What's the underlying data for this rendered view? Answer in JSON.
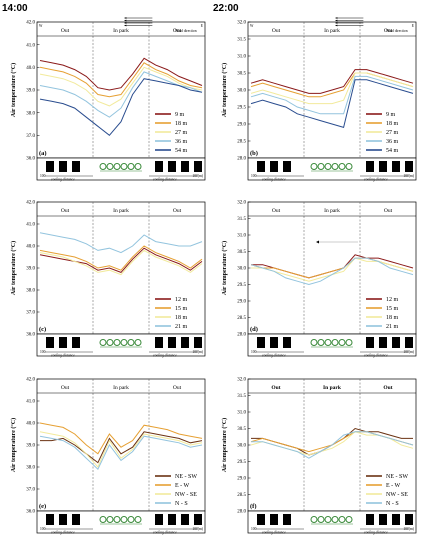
{
  "times": [
    "14:00",
    "22:00"
  ],
  "zones": [
    "Out",
    "In park",
    "Out"
  ],
  "wind_label": "Wind direction",
  "compass": [
    "W",
    "E"
  ],
  "ylabel": "Air temperature (°C)",
  "cooling_label": "cooling distance",
  "dist_start": "100",
  "dist_end": "100(m)",
  "colors": {
    "h9": "#8b1a1a",
    "h18": "#e6a033",
    "h27": "#f2ea9c",
    "h36": "#93c4de",
    "h54": "#2a4d8f",
    "h12": "#8b1a1a",
    "h15": "#e6a033",
    "h21": "#93c4de",
    "NESW": "#6b3212",
    "EW": "#e6a033",
    "NWSE": "#f2ea9c",
    "NS": "#93c4de"
  },
  "chart_data": [
    {
      "id": "a",
      "type": "line",
      "panel_label": "(a)",
      "time": "14:00",
      "ylim": [
        36,
        42
      ],
      "yticks": [
        "36.0",
        "37.0",
        "38.0",
        "39.0",
        "40.0",
        "41.0",
        "42.0"
      ],
      "show_wind": true,
      "show_compass": true,
      "series": [
        {
          "name": "9 m",
          "color_key": "h9",
          "values": [
            40.3,
            40.2,
            40.1,
            39.9,
            39.6,
            39.1,
            39.0,
            39.1,
            39.7,
            40.4,
            40.1,
            39.9,
            39.6,
            39.4,
            39.2
          ]
        },
        {
          "name": "18 m",
          "color_key": "h18",
          "values": [
            40.0,
            39.9,
            39.8,
            39.6,
            39.3,
            38.8,
            38.7,
            38.8,
            39.5,
            40.2,
            39.9,
            39.7,
            39.4,
            39.2,
            39.1
          ]
        },
        {
          "name": "27 m",
          "color_key": "h27",
          "values": [
            39.7,
            39.6,
            39.5,
            39.3,
            39.0,
            38.5,
            38.3,
            38.6,
            39.3,
            40.0,
            39.8,
            39.6,
            39.3,
            39.1,
            39.0
          ]
        },
        {
          "name": "36 m",
          "color_key": "h36",
          "values": [
            39.2,
            39.1,
            39.0,
            38.8,
            38.5,
            38.1,
            37.8,
            38.2,
            39.1,
            39.8,
            39.6,
            39.4,
            39.2,
            39.1,
            38.9
          ]
        },
        {
          "name": "54 m",
          "color_key": "h54",
          "values": [
            38.6,
            38.5,
            38.4,
            38.2,
            37.8,
            37.4,
            37.0,
            37.6,
            38.8,
            39.5,
            39.4,
            39.3,
            39.2,
            39.0,
            38.9
          ]
        }
      ]
    },
    {
      "id": "b",
      "type": "line",
      "panel_label": "(b)",
      "time": "22:00",
      "ylim": [
        28,
        32
      ],
      "yticks": [
        "28.0",
        "28.5",
        "29.0",
        "29.5",
        "30.0",
        "30.5",
        "31.0",
        "31.5",
        "32.0"
      ],
      "show_wind": true,
      "show_compass": true,
      "series": [
        {
          "name": "9 m",
          "color_key": "h9",
          "values": [
            30.2,
            30.3,
            30.2,
            30.1,
            30.0,
            29.9,
            29.9,
            30.0,
            30.1,
            30.6,
            30.6,
            30.5,
            30.4,
            30.3,
            30.2
          ]
        },
        {
          "name": "18 m",
          "color_key": "h18",
          "values": [
            30.1,
            30.2,
            30.1,
            30.0,
            29.9,
            29.8,
            29.8,
            29.9,
            30.0,
            30.5,
            30.5,
            30.4,
            30.3,
            30.2,
            30.1
          ]
        },
        {
          "name": "27 m",
          "color_key": "h27",
          "values": [
            29.9,
            30.0,
            29.9,
            29.8,
            29.7,
            29.6,
            29.6,
            29.6,
            29.7,
            30.5,
            30.5,
            30.4,
            30.3,
            30.2,
            30.1
          ]
        },
        {
          "name": "36 m",
          "color_key": "h36",
          "values": [
            29.8,
            29.9,
            29.8,
            29.7,
            29.5,
            29.4,
            29.3,
            29.3,
            29.3,
            30.4,
            30.4,
            30.3,
            30.2,
            30.1,
            30.0
          ]
        },
        {
          "name": "54 m",
          "color_key": "h54",
          "values": [
            29.6,
            29.7,
            29.6,
            29.5,
            29.3,
            29.2,
            29.1,
            29.0,
            28.9,
            30.3,
            30.3,
            30.2,
            30.1,
            30.0,
            29.9
          ]
        }
      ]
    },
    {
      "id": "c",
      "type": "line",
      "panel_label": "(c)",
      "time": "14:00",
      "ylim": [
        36,
        42
      ],
      "yticks": [
        "36.0",
        "37.0",
        "38.0",
        "39.0",
        "40.0",
        "41.0",
        "42.0"
      ],
      "show_wind": false,
      "show_compass": false,
      "series": [
        {
          "name": "12 m",
          "color_key": "h12",
          "values": [
            39.6,
            39.5,
            39.4,
            39.3,
            39.2,
            38.9,
            39.0,
            38.8,
            39.4,
            39.9,
            39.6,
            39.4,
            39.2,
            38.9,
            39.3
          ]
        },
        {
          "name": "15 m",
          "color_key": "h15",
          "values": [
            39.8,
            39.7,
            39.6,
            39.5,
            39.3,
            39.0,
            39.1,
            38.9,
            39.5,
            40.0,
            39.7,
            39.5,
            39.3,
            39.0,
            39.4
          ]
        },
        {
          "name": "18 m",
          "color_key": "h27",
          "values": [
            39.7,
            39.6,
            39.5,
            39.3,
            39.1,
            38.8,
            38.9,
            38.7,
            39.3,
            39.8,
            39.5,
            39.3,
            39.1,
            38.8,
            39.2
          ]
        },
        {
          "name": "21 m",
          "color_key": "h21",
          "values": [
            40.6,
            40.5,
            40.4,
            40.3,
            40.1,
            39.8,
            39.9,
            39.7,
            40.0,
            40.5,
            40.2,
            40.1,
            40.0,
            40.0,
            40.2
          ]
        }
      ]
    },
    {
      "id": "d",
      "type": "line",
      "panel_label": "(d)",
      "time": "22:00",
      "ylim": [
        28,
        32
      ],
      "yticks": [
        "28.0",
        "28.5",
        "29.0",
        "29.5",
        "30.0",
        "30.5",
        "31.0",
        "31.5",
        "32.0"
      ],
      "show_wind": false,
      "show_compass": false,
      "show_arrow": true,
      "series": [
        {
          "name": "12 m",
          "color_key": "h12",
          "values": [
            30.1,
            30.1,
            30.0,
            29.9,
            29.8,
            29.7,
            29.8,
            29.9,
            30.0,
            30.4,
            30.3,
            30.3,
            30.2,
            30.1,
            30.0
          ]
        },
        {
          "name": "15 m",
          "color_key": "h15",
          "values": [
            30.1,
            30.0,
            30.0,
            29.9,
            29.8,
            29.7,
            29.8,
            29.9,
            30.0,
            30.3,
            30.3,
            30.2,
            30.1,
            30.0,
            29.9
          ]
        },
        {
          "name": "18 m",
          "color_key": "h27",
          "values": [
            30.0,
            30.0,
            29.9,
            29.8,
            29.7,
            29.6,
            29.7,
            29.8,
            29.9,
            30.3,
            30.2,
            30.2,
            30.1,
            30.0,
            29.9
          ]
        },
        {
          "name": "21 m",
          "color_key": "h21",
          "values": [
            30.1,
            30.0,
            29.9,
            29.7,
            29.6,
            29.5,
            29.6,
            29.8,
            30.0,
            30.3,
            30.3,
            30.2,
            30.0,
            29.9,
            29.8
          ]
        }
      ]
    },
    {
      "id": "e",
      "type": "line",
      "panel_label": "(e)",
      "time": "14:00",
      "ylim": [
        36,
        42
      ],
      "yticks": [
        "36.0",
        "37.0",
        "38.0",
        "39.0",
        "40.0",
        "41.0",
        "42.0"
      ],
      "show_wind": false,
      "show_compass": false,
      "series": [
        {
          "name": "NE - SW",
          "color_key": "NESW",
          "values": [
            39.2,
            39.2,
            39.3,
            39.0,
            38.6,
            38.2,
            39.3,
            38.6,
            38.9,
            39.6,
            39.5,
            39.4,
            39.3,
            39.1,
            39.2
          ]
        },
        {
          "name": "E - W",
          "color_key": "EW",
          "values": [
            40.0,
            39.9,
            39.8,
            39.5,
            39.0,
            38.6,
            39.5,
            38.9,
            39.2,
            39.9,
            39.8,
            39.7,
            39.5,
            39.4,
            39.3
          ]
        },
        {
          "name": "NW - SE",
          "color_key": "NWSE",
          "values": [
            39.6,
            39.5,
            39.4,
            39.1,
            38.6,
            38.0,
            39.2,
            38.4,
            38.8,
            39.5,
            39.4,
            39.3,
            39.2,
            39.0,
            39.1
          ]
        },
        {
          "name": "N - S",
          "color_key": "NS",
          "values": [
            39.4,
            39.3,
            39.2,
            38.9,
            38.4,
            37.9,
            39.0,
            38.3,
            38.7,
            39.4,
            39.3,
            39.2,
            39.1,
            38.9,
            39.0
          ]
        }
      ]
    },
    {
      "id": "f",
      "type": "line",
      "panel_label": "(f)",
      "time": "22:00",
      "ylim": [
        28,
        32
      ],
      "yticks": [
        "28.0",
        "28.5",
        "29.0",
        "29.5",
        "30.0",
        "30.5",
        "31.0",
        "31.5",
        "32.0"
      ],
      "show_wind": false,
      "show_compass": false,
      "series": [
        {
          "name": "NE - SW",
          "color_key": "NESW",
          "values": [
            30.2,
            30.2,
            30.1,
            30.0,
            29.9,
            29.7,
            29.8,
            30.0,
            30.2,
            30.5,
            30.4,
            30.4,
            30.3,
            30.2,
            30.2
          ]
        },
        {
          "name": "E - W",
          "color_key": "EW",
          "values": [
            30.1,
            30.2,
            30.1,
            30.0,
            29.9,
            29.8,
            29.9,
            30.0,
            30.2,
            30.4,
            30.4,
            30.3,
            30.2,
            30.1,
            30.0
          ]
        },
        {
          "name": "NW - SE",
          "color_key": "NWSE",
          "values": [
            30.0,
            30.1,
            30.0,
            29.9,
            29.8,
            29.7,
            29.8,
            29.9,
            30.1,
            30.4,
            30.3,
            30.3,
            30.2,
            30.0,
            29.9
          ]
        },
        {
          "name": "N - S",
          "color_key": "NS",
          "values": [
            30.1,
            30.1,
            30.0,
            29.9,
            29.8,
            29.6,
            29.8,
            30.0,
            30.3,
            30.4,
            30.4,
            30.3,
            30.2,
            30.1,
            30.0
          ]
        }
      ]
    }
  ]
}
